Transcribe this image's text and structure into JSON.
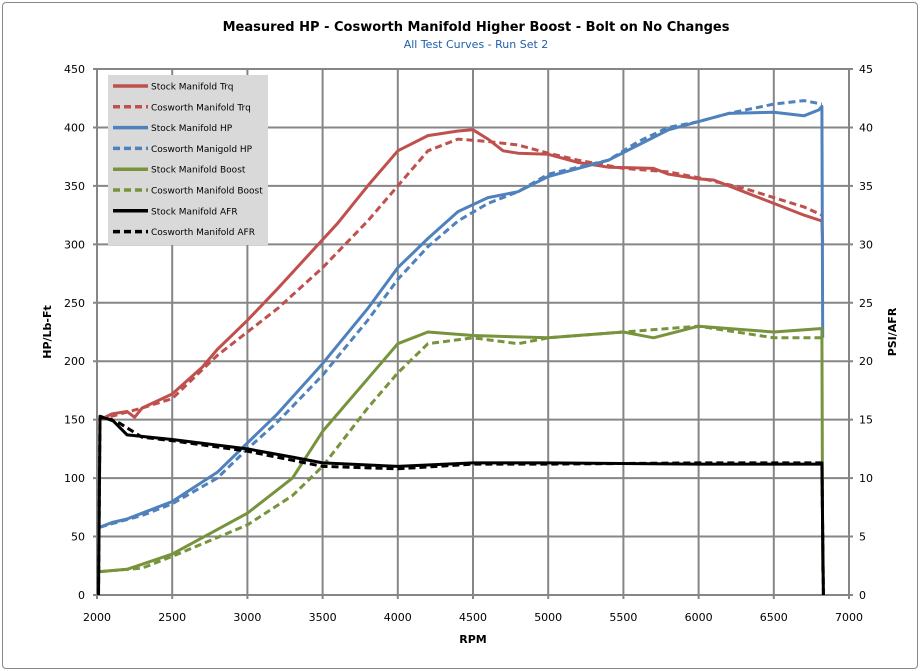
{
  "chart_data": {
    "type": "line",
    "title": "Measured HP  - Cosworth Manifold Higher Boost - Bolt on No Changes",
    "subtitle": "All Test Curves - Run Set 2",
    "xlabel": "RPM",
    "ylabel": "HP/Lb-Ft",
    "y2label": "PSI/AFR",
    "xlim": [
      2000,
      7000
    ],
    "ylim": [
      0,
      450
    ],
    "y2lim": [
      0,
      45
    ],
    "xticks": [
      2000,
      2500,
      3000,
      3500,
      4000,
      4500,
      5000,
      5500,
      6000,
      6500,
      7000
    ],
    "yticks": [
      0,
      50,
      100,
      150,
      200,
      250,
      300,
      350,
      400,
      450
    ],
    "y2ticks": [
      0,
      5,
      10,
      15,
      20,
      25,
      30,
      35,
      40,
      45
    ],
    "grid": true,
    "legend_position": "top-left",
    "series": [
      {
        "name": "Stock Manifold Trq",
        "axis": "left",
        "color": "#c0504d",
        "dash": false,
        "x": [
          2020,
          2100,
          2200,
          2250,
          2300,
          2500,
          2700,
          2800,
          3000,
          3200,
          3400,
          3600,
          3800,
          4000,
          4200,
          4400,
          4500,
          4600,
          4700,
          4800,
          5000,
          5200,
          5400,
          5700,
          5800,
          6000,
          6100,
          6300,
          6500,
          6700,
          6820,
          6825
        ],
        "y": [
          150,
          155,
          157,
          152,
          160,
          172,
          195,
          210,
          235,
          262,
          290,
          318,
          350,
          380,
          393,
          397,
          398,
          390,
          380,
          378,
          377,
          370,
          366,
          365,
          360,
          356,
          355,
          345,
          335,
          325,
          320,
          300
        ]
      },
      {
        "name": "Cosworth Manifold Trq",
        "axis": "left",
        "color": "#c0504d",
        "dash": true,
        "x": [
          2020,
          2100,
          2300,
          2500,
          2800,
          3000,
          3200,
          3500,
          3800,
          4000,
          4200,
          4400,
          4600,
          4800,
          5000,
          5200,
          5500,
          5800,
          6000,
          6300,
          6500,
          6700,
          6820
        ],
        "y": [
          150,
          153,
          160,
          168,
          205,
          225,
          245,
          280,
          320,
          350,
          380,
          390,
          388,
          385,
          378,
          372,
          365,
          362,
          357,
          348,
          340,
          332,
          325
        ]
      },
      {
        "name": "Stock Manifold HP",
        "axis": "left",
        "color": "#4f81bd",
        "dash": false,
        "x": [
          2020,
          2100,
          2200,
          2300,
          2500,
          2800,
          3000,
          3200,
          3500,
          3800,
          4000,
          4200,
          4400,
          4600,
          4800,
          5000,
          5200,
          5400,
          5600,
          5800,
          6000,
          6200,
          6500,
          6700,
          6800,
          6820,
          6825
        ],
        "y": [
          58,
          62,
          65,
          70,
          80,
          105,
          130,
          155,
          198,
          245,
          280,
          305,
          328,
          340,
          345,
          358,
          365,
          372,
          385,
          398,
          405,
          412,
          413,
          410,
          415,
          418,
          220
        ]
      },
      {
        "name": "Cosworth Manigold HP",
        "axis": "left",
        "color": "#4f81bd",
        "dash": true,
        "x": [
          2020,
          2100,
          2300,
          2500,
          2800,
          3000,
          3200,
          3500,
          3800,
          4000,
          4200,
          4400,
          4600,
          4800,
          5000,
          5200,
          5400,
          5600,
          5800,
          6000,
          6200,
          6500,
          6700,
          6820
        ],
        "y": [
          58,
          61,
          68,
          78,
          100,
          125,
          148,
          188,
          235,
          270,
          298,
          320,
          335,
          345,
          360,
          366,
          372,
          388,
          400,
          405,
          412,
          420,
          423,
          420
        ]
      },
      {
        "name": "Stock Manifold Boost",
        "axis": "right",
        "color": "#77933c",
        "dash": false,
        "x": [
          2020,
          2200,
          2500,
          3000,
          3300,
          3500,
          3800,
          4000,
          4200,
          4500,
          5000,
          5500,
          5700,
          6000,
          6500,
          6820,
          6825
        ],
        "y": [
          2,
          2.2,
          3.5,
          7,
          10,
          14,
          18.5,
          21.5,
          22.5,
          22.2,
          22,
          22.5,
          22,
          23,
          22.5,
          22.8,
          2
        ]
      },
      {
        "name": "Cosworth Manifold Boost",
        "axis": "right",
        "color": "#77933c",
        "dash": true,
        "x": [
          2020,
          2300,
          2500,
          3000,
          3300,
          3500,
          3800,
          4000,
          4200,
          4500,
          4800,
          5000,
          5500,
          6000,
          6500,
          6820
        ],
        "y": [
          2,
          2.3,
          3.3,
          6,
          8.5,
          11,
          16,
          19,
          21.5,
          22,
          21.5,
          22,
          22.5,
          23,
          22,
          22
        ]
      },
      {
        "name": "Stock Manifold AFR",
        "axis": "right",
        "color": "#000000",
        "dash": false,
        "x": [
          2010,
          2020,
          2100,
          2200,
          2500,
          3000,
          3300,
          3500,
          4000,
          4500,
          5000,
          6000,
          6820,
          6830
        ],
        "y": [
          0,
          15.2,
          15,
          13.7,
          13.3,
          12.5,
          11.8,
          11.3,
          11,
          11.3,
          11.3,
          11.2,
          11.2,
          0
        ]
      },
      {
        "name": "Cosworth Manifold AFR",
        "axis": "right",
        "color": "#000000",
        "dash": true,
        "x": [
          2010,
          2020,
          2150,
          2300,
          2500,
          3000,
          3500,
          4000,
          4500,
          5000,
          6000,
          6820,
          6830
        ],
        "y": [
          0,
          15.3,
          14.7,
          13.5,
          13.2,
          12.3,
          11,
          10.8,
          11.2,
          11.2,
          11.3,
          11.3,
          0
        ]
      }
    ]
  }
}
